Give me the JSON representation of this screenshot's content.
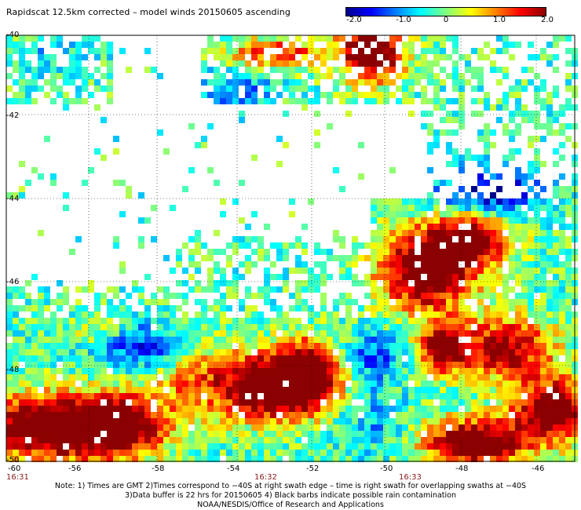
{
  "title": "Rapidscat 12.5km corrected – model winds 20150605 ascending",
  "colorbar": {
    "labels": [
      "-2.0",
      "-1.0",
      "0",
      "1.0",
      "2.0"
    ],
    "stops": [
      "#00008b",
      "#0000ff",
      "#0080ff",
      "#00ffff",
      "#80ff80",
      "#ffff00",
      "#ff8000",
      "#ff0000",
      "#8b0000"
    ]
  },
  "map": {
    "lat_labels": [
      "-40",
      "-42",
      "-44",
      "-46",
      "-48",
      "-50"
    ],
    "lon_labels": [
      "-60",
      "-56",
      "-58",
      "-54",
      "-52",
      "-50",
      "-48",
      "-46"
    ],
    "time_labels": [
      "16:31",
      "16:32",
      "16:33"
    ],
    "lat_range": [
      -50,
      -40
    ],
    "lon_range": [
      -60,
      -45.5
    ],
    "gridlines": true
  },
  "footer": {
    "line1": "Note: 1) Times are GMT 2)Times correspond to −40S at right swath edge – time is right swath for overlapping swaths at −40S",
    "line2": "3)Data buffer is 22 hrs for 20150605 4) Black barbs indicate possible rain contamination",
    "line3": "NOAA/NESDIS/Office of Research and Applications"
  }
}
